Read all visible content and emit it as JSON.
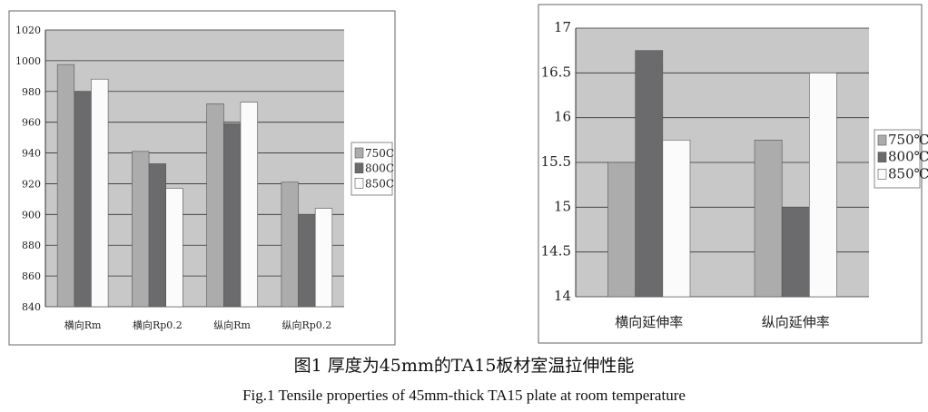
{
  "chart_data": [
    {
      "type": "bar",
      "categories": [
        "横向Rm",
        "横向Rp0.2",
        "纵向Rm",
        "纵向Rp0.2"
      ],
      "series": [
        {
          "name": "750C",
          "values": [
            997.5,
            941,
            972,
            921
          ]
        },
        {
          "name": "800C",
          "values": [
            980,
            933,
            959,
            900
          ]
        },
        {
          "name": "850C",
          "values": [
            988,
            917,
            973,
            904
          ]
        }
      ],
      "ylim": [
        840,
        1020
      ],
      "yticks": [
        "840",
        "860",
        "880",
        "900",
        "920",
        "940",
        "960",
        "980",
        "1000",
        "1020"
      ],
      "grid": true,
      "legend": "right",
      "colors": [
        "#acacac",
        "#6b6b6d",
        "#fbfbfb"
      ],
      "background": "#c8c8c8"
    },
    {
      "type": "bar",
      "categories": [
        "横向延伸率",
        "纵向延伸率"
      ],
      "series": [
        {
          "name": "750℃",
          "values": [
            15.5,
            15.75
          ]
        },
        {
          "name": "800℃",
          "values": [
            16.75,
            15.0
          ]
        },
        {
          "name": "850℃",
          "values": [
            15.75,
            16.5
          ]
        }
      ],
      "ylim": [
        14,
        17
      ],
      "yticks": [
        "14",
        "14.5",
        "15",
        "15.5",
        "16",
        "16.5",
        "17"
      ],
      "grid": true,
      "legend": "right",
      "colors": [
        "#acacac",
        "#6b6b6d",
        "#fbfbfb"
      ],
      "background": "#c8c8c8"
    }
  ],
  "caption": {
    "cn": "图1  厚度为45mm的TA15板材室温拉伸性能",
    "en": "Fig.1  Tensile properties of 45mm-thick TA15 plate at room temperature"
  }
}
